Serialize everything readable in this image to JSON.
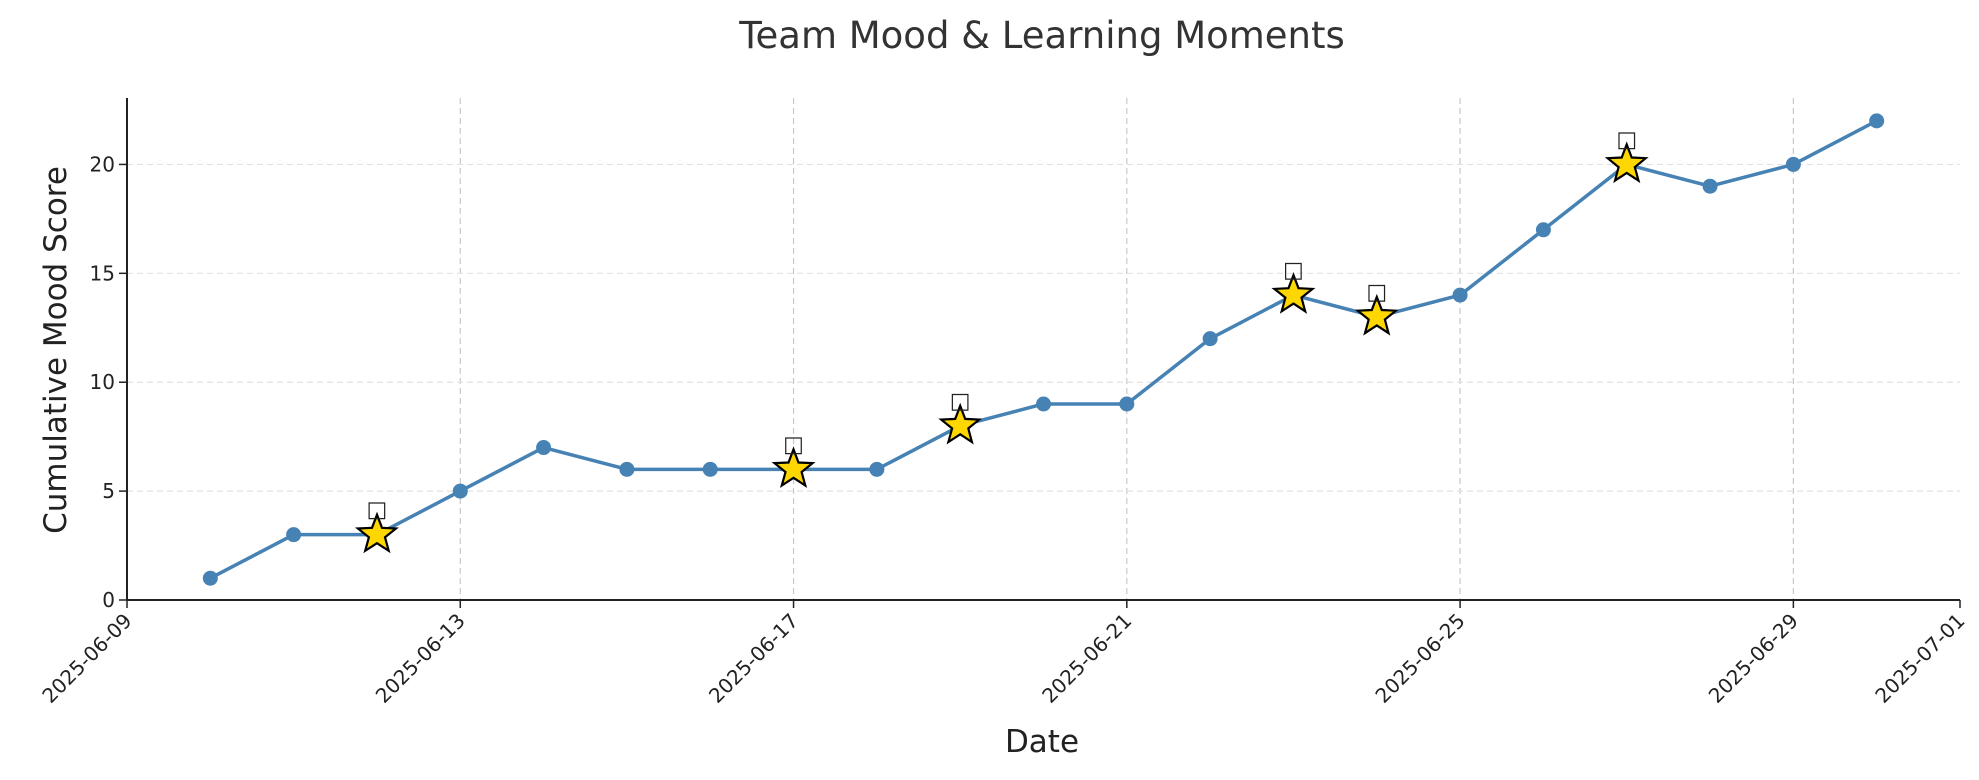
{
  "chart_data": {
    "type": "line",
    "title": "Team Mood & Learning Moments",
    "xlabel": "Date",
    "ylabel": "Cumulative Mood Score",
    "x": [
      "2025-06-10",
      "2025-06-11",
      "2025-06-12",
      "2025-06-13",
      "2025-06-14",
      "2025-06-15",
      "2025-06-16",
      "2025-06-17",
      "2025-06-18",
      "2025-06-19",
      "2025-06-20",
      "2025-06-21",
      "2025-06-22",
      "2025-06-23",
      "2025-06-24",
      "2025-06-25",
      "2025-06-26",
      "2025-06-27",
      "2025-06-28",
      "2025-06-29",
      "2025-06-30"
    ],
    "series": [
      {
        "values": [
          1,
          3,
          3,
          5,
          7,
          6,
          6,
          6,
          6,
          8,
          9,
          9,
          12,
          14,
          13,
          14,
          17,
          20,
          19,
          20,
          22
        ],
        "color": "#4682B4"
      }
    ],
    "learning_moments": [
      "2025-06-12",
      "2025-06-17",
      "2025-06-19",
      "2025-06-23",
      "2025-06-24",
      "2025-06-27"
    ],
    "learning_moment_marker": {
      "shape": "star",
      "color": "#FFD700",
      "edge_color": "#000000",
      "glyph": "□"
    },
    "x_ticks": [
      "2025-06-09",
      "2025-06-13",
      "2025-06-17",
      "2025-06-21",
      "2025-06-25",
      "2025-06-29",
      "2025-07-01"
    ],
    "y_ticks": [
      0,
      5,
      10,
      15,
      20
    ],
    "xlim": [
      "2025-06-09",
      "2025-07-01"
    ],
    "ylim": [
      0,
      23.05
    ],
    "grid": true,
    "legend": "none"
  }
}
